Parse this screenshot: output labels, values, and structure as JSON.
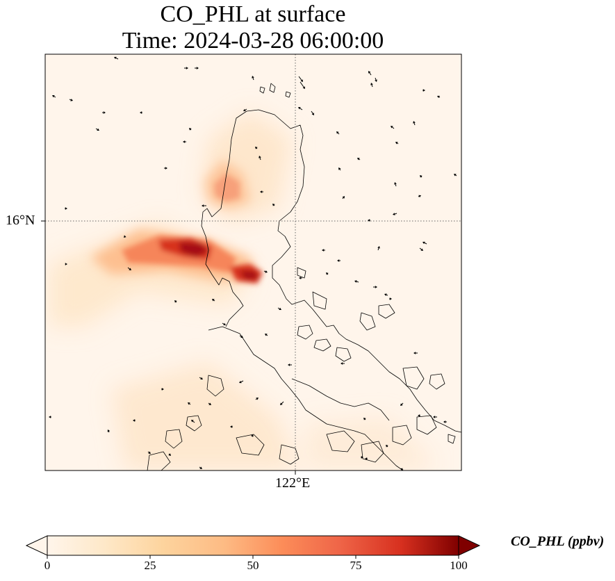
{
  "map": {
    "title_line1": "CO_PHL at surface",
    "title_line2": "Time: 2024-03-28 06:00:00",
    "latitude_label": "16°N",
    "longitude_label": "122°E",
    "background_color": "#fff5eb",
    "coastline_color": "#000000",
    "gridline_style": "dotted",
    "layers": [
      "CO concentration field",
      "coastlines",
      "wind vectors",
      "gridlines"
    ]
  },
  "colorbar": {
    "label": "CO_PHL (ppbv)",
    "colormap": "OrRd",
    "colors": [
      "#fff5eb",
      "#fdd49e",
      "#fdbb84",
      "#fc8d59",
      "#ef6548",
      "#d7301f",
      "#b30000",
      "#7f0000"
    ],
    "ticks": [
      "0",
      "25",
      "50",
      "75",
      "100"
    ],
    "min": 0,
    "max": 100,
    "extend": "both"
  }
}
